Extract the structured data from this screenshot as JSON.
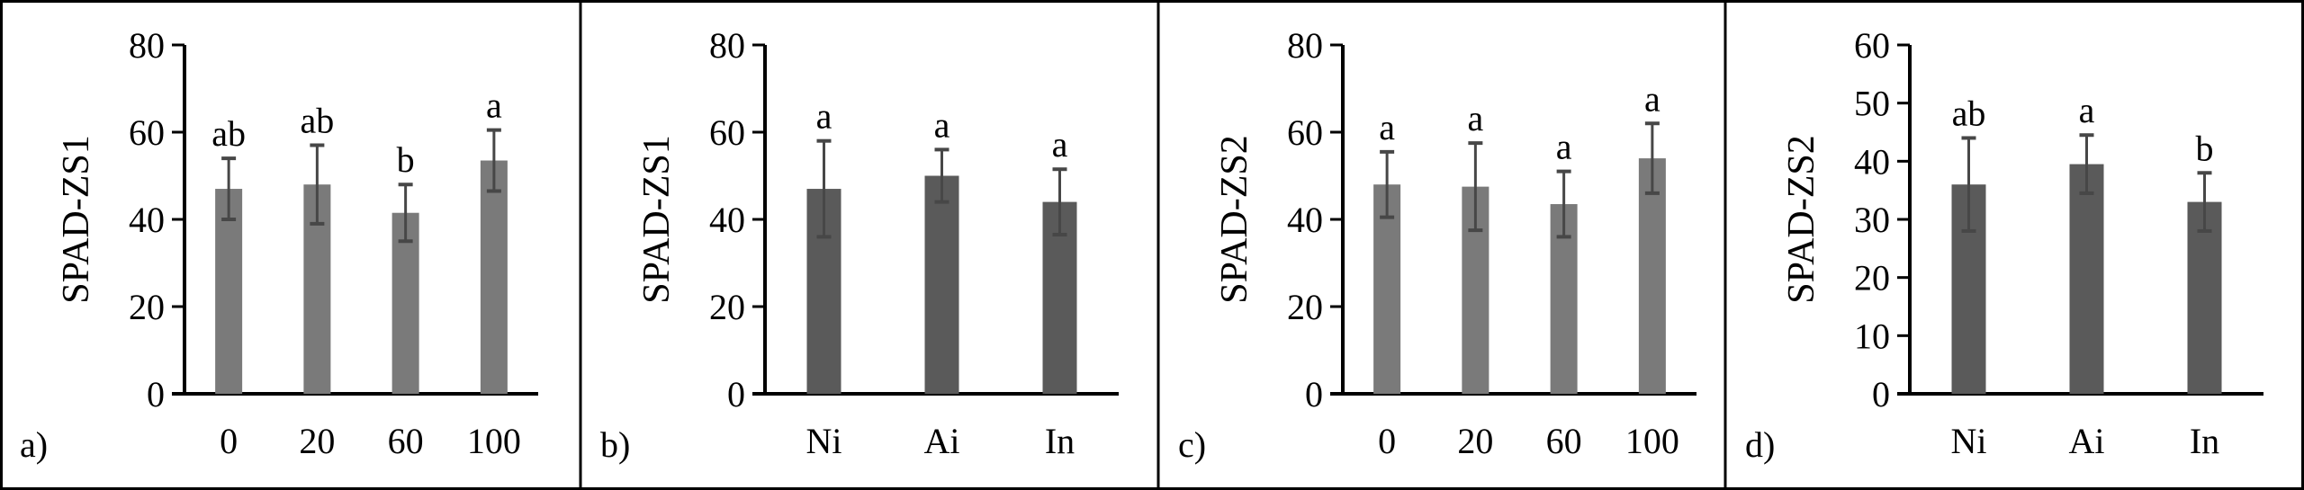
{
  "chart_data": [
    {
      "type": "bar",
      "panel_label": "a)",
      "ylabel": "SPAD-ZS1",
      "xlabel": "",
      "ylim": [
        0,
        80
      ],
      "yticks": [
        0,
        20,
        40,
        60,
        80
      ],
      "categories": [
        "0",
        "20",
        "60",
        "100"
      ],
      "values": [
        47,
        48,
        41.5,
        53.5
      ],
      "errors": [
        7,
        9,
        6.5,
        7
      ],
      "letters": [
        "ab",
        "ab",
        "b",
        "a"
      ],
      "bar_color": "#7a7a7a"
    },
    {
      "type": "bar",
      "panel_label": "b)",
      "ylabel": "SPAD-ZS1",
      "xlabel": "",
      "ylim": [
        0,
        80
      ],
      "yticks": [
        0,
        20,
        40,
        60,
        80
      ],
      "categories": [
        "Ni",
        "Ai",
        "In"
      ],
      "values": [
        47,
        50,
        44
      ],
      "errors": [
        11,
        6,
        7.5
      ],
      "letters": [
        "a",
        "a",
        "a"
      ],
      "bar_color": "#5a5a5a"
    },
    {
      "type": "bar",
      "panel_label": "c)",
      "ylabel": "SPAD-ZS2",
      "xlabel": "",
      "ylim": [
        0,
        80
      ],
      "yticks": [
        0,
        20,
        40,
        60,
        80
      ],
      "categories": [
        "0",
        "20",
        "60",
        "100"
      ],
      "values": [
        48,
        47.5,
        43.5,
        54
      ],
      "errors": [
        7.5,
        10,
        7.5,
        8
      ],
      "letters": [
        "a",
        "a",
        "a",
        "a"
      ],
      "bar_color": "#7a7a7a"
    },
    {
      "type": "bar",
      "panel_label": "d)",
      "ylabel": "SPAD-ZS2",
      "xlabel": "",
      "ylim": [
        0,
        60
      ],
      "yticks": [
        0,
        10,
        20,
        30,
        40,
        50,
        60
      ],
      "categories": [
        "Ni",
        "Ai",
        "In"
      ],
      "values": [
        36,
        39.5,
        33
      ],
      "errors": [
        8,
        5,
        5
      ],
      "letters": [
        "ab",
        "a",
        "b"
      ],
      "bar_color": "#5a5a5a"
    }
  ],
  "colors": {
    "error_bar": "#474747",
    "axis": "#000000",
    "border": "#000000"
  }
}
